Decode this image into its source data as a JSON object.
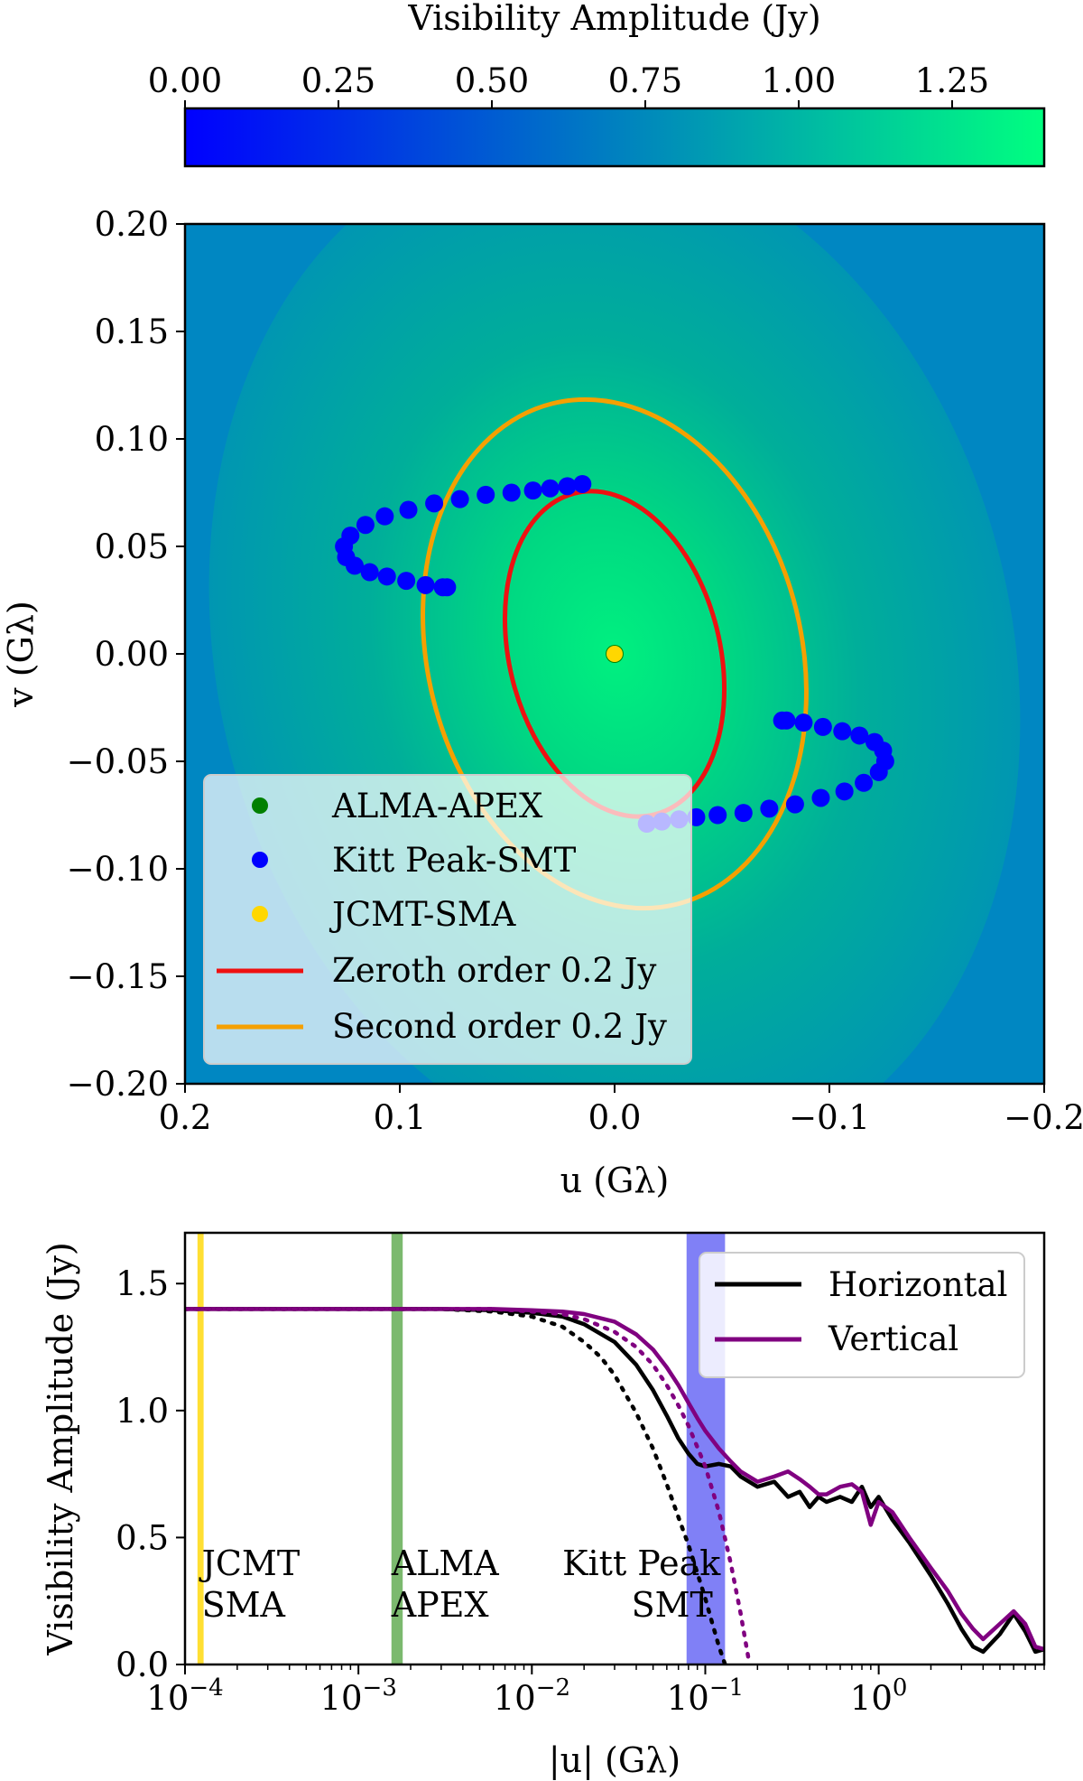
{
  "colorbar": {
    "label": "Visibility Amplitude (Jy)",
    "ticks": [
      0.0,
      0.25,
      0.5,
      0.75,
      1.0,
      1.25
    ],
    "tick_labels": [
      "0.00",
      "0.25",
      "0.50",
      "0.75",
      "1.00",
      "1.25"
    ],
    "range": [
      0,
      1.4
    ],
    "colormap": [
      "#0000ff",
      "#00ff80"
    ]
  },
  "chart_data": [
    {
      "type": "scatter",
      "xlabel": "u (Gλ)",
      "ylabel": "v (Gλ)",
      "xlim": [
        0.2,
        -0.2
      ],
      "ylim": [
        -0.2,
        0.2
      ],
      "x_ticks": [
        0.2,
        0.1,
        0.0,
        -0.1,
        -0.2
      ],
      "x_tick_labels": [
        "0.2",
        "0.1",
        "0.0",
        "−0.1",
        "−0.2"
      ],
      "y_ticks": [
        0.2,
        0.15,
        0.1,
        0.05,
        0.0,
        -0.05,
        -0.1,
        -0.15,
        -0.2
      ],
      "y_tick_labels": [
        "0.20",
        "0.15",
        "0.10",
        "0.05",
        "0.00",
        "−0.05",
        "−0.10",
        "−0.15",
        "−0.20"
      ],
      "background": "visibility amplitude heatmap, peak 1.4 Jy at origin",
      "legend_position": "lower-left",
      "series": [
        {
          "name": "ALMA-APEX",
          "kind": "points",
          "color": "#008000",
          "x": [
            0.0
          ],
          "y": [
            0.0
          ]
        },
        {
          "name": "Kitt Peak-SMT",
          "kind": "points",
          "color": "#0000ff",
          "x": [
            0.015,
            0.022,
            0.03,
            0.038,
            0.048,
            0.06,
            0.072,
            0.084,
            0.096,
            0.107,
            0.116,
            0.123,
            0.126,
            0.125,
            0.121,
            0.114,
            0.106,
            0.097,
            0.088,
            0.08,
            0.078,
            -0.015,
            -0.022,
            -0.03,
            -0.038,
            -0.048,
            -0.06,
            -0.072,
            -0.084,
            -0.096,
            -0.107,
            -0.116,
            -0.123,
            -0.126,
            -0.125,
            -0.121,
            -0.114,
            -0.106,
            -0.097,
            -0.088,
            -0.08,
            -0.078
          ],
          "y": [
            0.079,
            0.078,
            0.077,
            0.076,
            0.075,
            0.074,
            0.072,
            0.07,
            0.067,
            0.064,
            0.06,
            0.055,
            0.05,
            0.045,
            0.041,
            0.038,
            0.036,
            0.034,
            0.032,
            0.031,
            0.031,
            -0.079,
            -0.078,
            -0.077,
            -0.076,
            -0.075,
            -0.074,
            -0.072,
            -0.07,
            -0.067,
            -0.064,
            -0.06,
            -0.055,
            -0.05,
            -0.045,
            -0.041,
            -0.038,
            -0.036,
            -0.034,
            -0.032,
            -0.031,
            -0.031
          ]
        },
        {
          "name": "JCMT-SMA",
          "kind": "points",
          "color": "#ffd700",
          "x": [
            0.0
          ],
          "y": [
            0.0
          ]
        },
        {
          "name": "Zeroth order 0.2 Jy",
          "kind": "contour",
          "color": "#ee1111",
          "ellipse": {
            "cx": 0.0,
            "cy": 0.0,
            "a": 0.077,
            "b": 0.049,
            "tilt_deg": 76
          }
        },
        {
          "name": "Second order 0.2 Jy",
          "kind": "contour",
          "color": "#f5a000",
          "ellipse": {
            "cx": 0.0,
            "cy": 0.0,
            "a": 0.12,
            "b": 0.087,
            "tilt_deg": 76
          }
        }
      ]
    },
    {
      "type": "line",
      "xlabel": "|u| (Gλ)",
      "ylabel": "Visibility Amplitude (Jy)",
      "xscale": "log",
      "xlim": [
        0.0001,
        9
      ],
      "ylim": [
        0,
        1.7
      ],
      "x_ticks": [
        0.0001,
        0.001,
        0.01,
        0.1,
        1
      ],
      "y_ticks": [
        0.0,
        0.5,
        1.0,
        1.5
      ],
      "y_tick_labels": [
        "0.0",
        "0.5",
        "1.0",
        "1.5"
      ],
      "legend_position": "upper-right",
      "bands": [
        {
          "label": "JCMT SMA",
          "from": 0.000118,
          "to": 0.000128,
          "color": "#ffd700"
        },
        {
          "label": "ALMA APEX",
          "from": 0.00155,
          "to": 0.0018,
          "color": "#5aa84a"
        },
        {
          "label": "Kitt Peak SMT",
          "from": 0.078,
          "to": 0.13,
          "color": "#6a6af5"
        }
      ],
      "annotations": [
        {
          "lines": [
            "JCMT",
            "SMA"
          ],
          "x": 0.000125
        },
        {
          "lines": [
            "ALMA",
            "APEX"
          ],
          "x": 0.00155
        },
        {
          "lines": [
            "Kitt Peak",
            "SMT"
          ],
          "x": 0.015
        }
      ],
      "series": [
        {
          "name": "Horizontal",
          "color": "#000000",
          "x": [
            0.0001,
            0.003,
            0.006,
            0.01,
            0.015,
            0.02,
            0.03,
            0.04,
            0.05,
            0.06,
            0.07,
            0.08,
            0.09,
            0.1,
            0.12,
            0.14,
            0.16,
            0.2,
            0.25,
            0.3,
            0.35,
            0.4,
            0.45,
            0.5,
            0.6,
            0.7,
            0.8,
            0.9,
            1.0,
            1.2,
            1.5,
            2.0,
            2.5,
            3.0,
            3.5,
            4.0,
            5.0,
            6.0,
            7.0,
            8.0,
            9.0
          ],
          "y": [
            1.4,
            1.4,
            1.395,
            1.385,
            1.37,
            1.34,
            1.27,
            1.18,
            1.08,
            0.98,
            0.89,
            0.83,
            0.79,
            0.78,
            0.79,
            0.78,
            0.74,
            0.7,
            0.72,
            0.66,
            0.68,
            0.62,
            0.66,
            0.64,
            0.66,
            0.64,
            0.7,
            0.62,
            0.66,
            0.57,
            0.48,
            0.35,
            0.24,
            0.14,
            0.07,
            0.05,
            0.12,
            0.2,
            0.13,
            0.05,
            0.06
          ]
        },
        {
          "name": "Vertical",
          "color": "#800080",
          "x": [
            0.0001,
            0.003,
            0.006,
            0.01,
            0.015,
            0.02,
            0.03,
            0.04,
            0.05,
            0.06,
            0.07,
            0.08,
            0.09,
            0.1,
            0.12,
            0.14,
            0.16,
            0.2,
            0.25,
            0.3,
            0.35,
            0.4,
            0.45,
            0.5,
            0.6,
            0.7,
            0.8,
            0.9,
            1.0,
            1.2,
            1.5,
            2.0,
            2.5,
            3.0,
            3.5,
            4.0,
            5.0,
            6.0,
            7.0,
            8.0,
            9.0
          ],
          "y": [
            1.4,
            1.4,
            1.4,
            1.395,
            1.39,
            1.38,
            1.35,
            1.3,
            1.24,
            1.17,
            1.1,
            1.03,
            0.97,
            0.92,
            0.85,
            0.8,
            0.76,
            0.72,
            0.74,
            0.76,
            0.73,
            0.7,
            0.67,
            0.67,
            0.7,
            0.71,
            0.68,
            0.55,
            0.64,
            0.6,
            0.5,
            0.38,
            0.29,
            0.2,
            0.14,
            0.1,
            0.16,
            0.21,
            0.16,
            0.07,
            0.06
          ]
        },
        {
          "name": "",
          "color": "#000000",
          "dashed": true,
          "x": [
            0.0001,
            0.003,
            0.006,
            0.01,
            0.015,
            0.02,
            0.025,
            0.03,
            0.04,
            0.05,
            0.06,
            0.07,
            0.08,
            0.09,
            0.1,
            0.11,
            0.12,
            0.13
          ],
          "y": [
            1.4,
            1.4,
            1.39,
            1.37,
            1.33,
            1.27,
            1.21,
            1.14,
            0.99,
            0.85,
            0.71,
            0.58,
            0.47,
            0.36,
            0.26,
            0.16,
            0.07,
            0.0
          ]
        },
        {
          "name": "",
          "color": "#800080",
          "dashed": true,
          "x": [
            0.0001,
            0.003,
            0.006,
            0.01,
            0.015,
            0.02,
            0.03,
            0.04,
            0.05,
            0.06,
            0.07,
            0.08,
            0.1,
            0.12,
            0.14,
            0.16,
            0.18
          ],
          "y": [
            1.4,
            1.4,
            1.4,
            1.39,
            1.38,
            1.36,
            1.31,
            1.25,
            1.18,
            1.1,
            1.02,
            0.94,
            0.78,
            0.6,
            0.4,
            0.2,
            0.0
          ]
        }
      ]
    }
  ]
}
